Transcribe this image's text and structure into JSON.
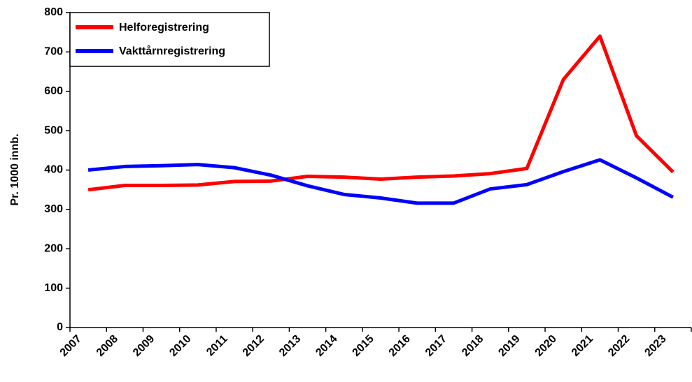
{
  "chart_data": {
    "type": "line",
    "y_label": "Pr. 1000 innb.",
    "categories": [
      "2007",
      "2008",
      "2009",
      "2010",
      "2011",
      "2012",
      "2013",
      "2014",
      "2015",
      "2016",
      "2017",
      "2018",
      "2019",
      "2020",
      "2021",
      "2022",
      "2023"
    ],
    "series": [
      {
        "name": "Helforegistrering",
        "color": "#ff0000",
        "values": [
          350,
          361,
          361,
          362,
          371,
          372,
          384,
          382,
          377,
          382,
          385,
          391,
          404,
          630,
          740,
          487,
          395
        ]
      },
      {
        "name": "Vakttårnregistrering",
        "color": "#0000ff",
        "values": [
          400,
          409,
          411,
          414,
          406,
          387,
          360,
          338,
          329,
          316,
          316,
          352,
          363,
          396,
          426,
          380,
          331
        ]
      }
    ],
    "ylim": [
      0,
      800
    ],
    "yticks": [
      0,
      100,
      200,
      300,
      400,
      500,
      600,
      700,
      800
    ],
    "grid": false,
    "legend": "top-left"
  }
}
